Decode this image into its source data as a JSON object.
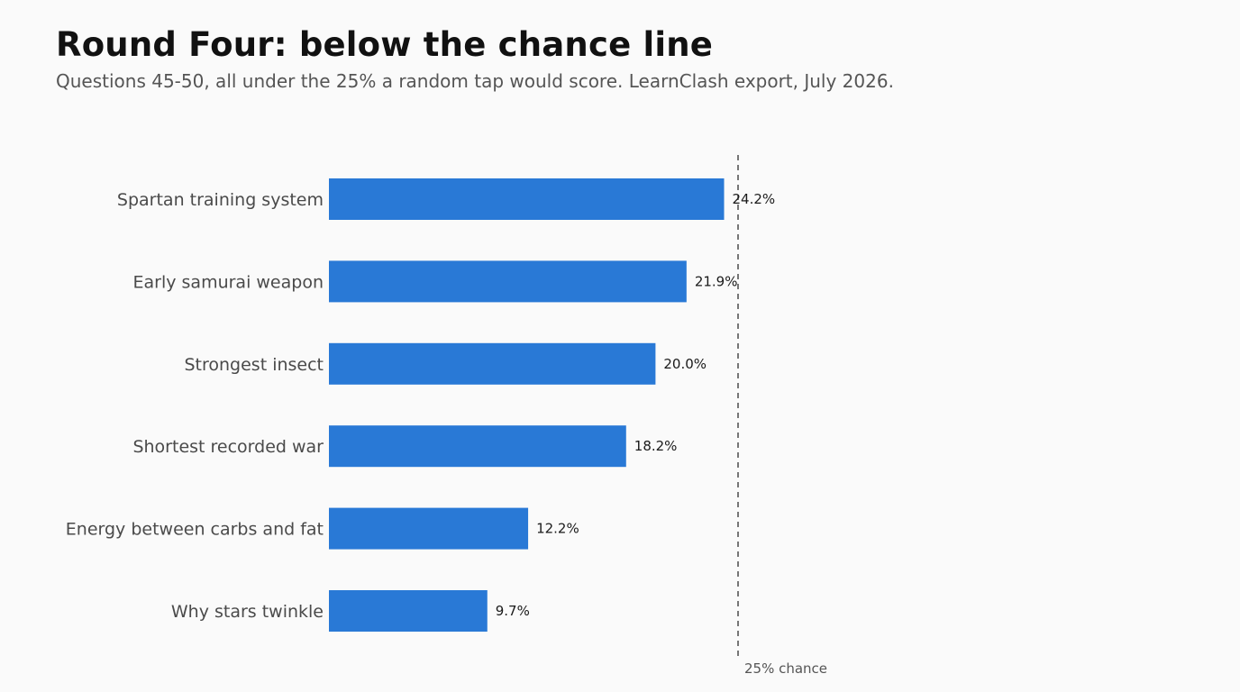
{
  "title": "Round Four: below the chance line",
  "subtitle": "Questions 45-50, all under the 25% a random tap would score. LearnClash export, July 2026.",
  "colors": {
    "bar": "#2979d6",
    "reference_line": "#555555",
    "background": "#fafafa"
  },
  "chart_data": {
    "type": "bar",
    "orientation": "horizontal",
    "categories": [
      "Spartan training system",
      "Early samurai weapon",
      "Strongest insect",
      "Shortest recorded war",
      "Energy between carbs and fat",
      "Why stars twinkle"
    ],
    "values": [
      24.2,
      21.9,
      20.0,
      18.2,
      12.2,
      9.7
    ],
    "value_labels": [
      "24.2%",
      "21.9%",
      "20.0%",
      "18.2%",
      "12.2%",
      "9.7%"
    ],
    "xlim": [
      0,
      25
    ],
    "reference_line": {
      "value": 25,
      "label": "25% chance",
      "style": "dashed"
    },
    "grid": false,
    "axes_visible": false
  }
}
